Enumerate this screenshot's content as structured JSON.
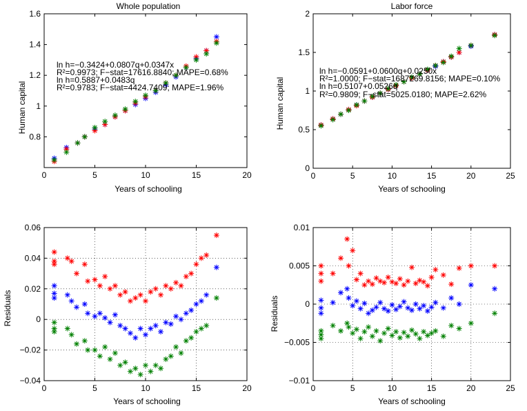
{
  "chart_data": [
    {
      "type": "scatter",
      "title": "Whole population",
      "xlabel": "Years of schooling",
      "ylabel": "Human capital",
      "xlim": [
        0,
        20
      ],
      "ylim": [
        0.6,
        1.6
      ],
      "xticks": [
        "0",
        "5",
        "10",
        "15",
        "20"
      ],
      "yticks": [
        "0.8",
        "1",
        "1.2",
        "1.4",
        "1.6"
      ],
      "grid": false,
      "annotations": [
        "ln h=−0.3424+0.0807q+0.0347x",
        "R²=0.9973; F−stat=17616.8840; MAPE=0.68%",
        "ln h=0.5887+0.0483q",
        "R²=0.9783; F−stat=4424.7409; MAPE=1.96%"
      ],
      "series": [
        {
          "color": "#0000ff",
          "x": [
            1.0,
            2.2,
            3.3,
            4.0,
            5.0,
            6.0,
            7.0,
            8.0,
            9.0,
            10.0,
            11.0,
            12.0,
            13.0,
            14.0,
            15.0,
            16.0,
            17.0
          ],
          "values": [
            0.66,
            0.73,
            0.76,
            0.8,
            0.85,
            0.88,
            0.93,
            0.97,
            1.01,
            1.05,
            1.09,
            1.14,
            1.19,
            1.25,
            1.31,
            1.36,
            1.45
          ]
        },
        {
          "color": "#ff0000",
          "x": [
            1.0,
            2.2,
            3.3,
            4.0,
            5.0,
            6.0,
            7.0,
            8.0,
            9.0,
            10.0,
            11.0,
            12.0,
            13.0,
            14.0,
            15.0,
            16.0,
            17.0
          ],
          "values": [
            0.64,
            0.72,
            0.76,
            0.8,
            0.84,
            0.88,
            0.93,
            0.97,
            1.02,
            1.06,
            1.1,
            1.15,
            1.2,
            1.26,
            1.32,
            1.36,
            1.42
          ]
        },
        {
          "color": "#008000",
          "x": [
            1.0,
            2.2,
            3.3,
            4.0,
            5.0,
            6.0,
            7.0,
            8.0,
            9.0,
            10.0,
            11.0,
            12.0,
            13.0,
            14.0,
            15.0,
            16.0,
            17.0
          ],
          "values": [
            0.65,
            0.7,
            0.76,
            0.8,
            0.86,
            0.9,
            0.94,
            0.98,
            1.03,
            1.07,
            1.1,
            1.15,
            1.2,
            1.25,
            1.3,
            1.34,
            1.41
          ]
        }
      ]
    },
    {
      "type": "scatter",
      "title": "Labor force",
      "xlabel": "Years of schooling",
      "ylabel": "Human capital",
      "xlim": [
        0,
        25
      ],
      "ylim": [
        0,
        2
      ],
      "xticks": [
        "0",
        "5",
        "10",
        "15",
        "20",
        "25"
      ],
      "yticks": [
        "0",
        "0.5",
        "1",
        "1.5",
        "2"
      ],
      "grid": false,
      "annotations": [
        "ln h=−0.0591+0.0600q+0.0250x",
        "R²=1.0000; F−stat=1687269.8156; MAPE=0.10%",
        "ln h=0.5107+0.0526q",
        "R²=0.9809; F−stat=5025.0180; MAPE=2.62%"
      ],
      "series": [
        {
          "color": "#0000ff",
          "x": [
            1.0,
            2.5,
            3.5,
            4.5,
            5.5,
            6.5,
            7.5,
            8.5,
            9.5,
            10.5,
            11.5,
            12.5,
            13.5,
            14.5,
            15.5,
            16.5,
            17.5,
            18.5,
            20.0,
            23.0
          ],
          "values": [
            0.56,
            0.64,
            0.7,
            0.76,
            0.82,
            0.87,
            0.92,
            0.97,
            1.02,
            1.07,
            1.12,
            1.17,
            1.22,
            1.27,
            1.32,
            1.38,
            1.44,
            1.5,
            1.58,
            1.73
          ]
        },
        {
          "color": "#ff0000",
          "x": [
            1.0,
            2.5,
            3.5,
            4.5,
            5.5,
            6.5,
            7.5,
            8.5,
            9.5,
            10.5,
            11.5,
            12.5,
            13.5,
            14.5,
            15.5,
            16.5,
            17.5,
            18.5,
            20.0,
            23.0
          ],
          "values": [
            0.56,
            0.64,
            0.7,
            0.76,
            0.81,
            0.87,
            0.92,
            0.97,
            1.02,
            1.07,
            1.12,
            1.17,
            1.22,
            1.27,
            1.33,
            1.38,
            1.44,
            1.5,
            1.59,
            1.73
          ]
        },
        {
          "color": "#008000",
          "x": [
            1.0,
            2.5,
            3.5,
            4.5,
            5.5,
            6.5,
            7.5,
            8.5,
            9.5,
            10.5,
            11.5,
            12.5,
            13.5,
            14.5,
            15.5,
            16.5,
            17.5,
            18.5,
            20.0,
            23.0
          ],
          "values": [
            0.55,
            0.63,
            0.7,
            0.75,
            0.82,
            0.87,
            0.93,
            0.97,
            1.03,
            1.08,
            1.12,
            1.18,
            1.22,
            1.28,
            1.33,
            1.37,
            1.45,
            1.55,
            1.59,
            1.72
          ]
        }
      ]
    },
    {
      "type": "scatter",
      "title": "",
      "xlabel": "Years of schooling",
      "ylabel": "Residuals",
      "xlim": [
        0,
        20
      ],
      "ylim": [
        -0.04,
        0.06
      ],
      "xticks": [
        "0",
        "5",
        "10",
        "15",
        "20"
      ],
      "yticks": [
        "−0.04",
        "−0.02",
        "0",
        "0.02",
        "0.04",
        "0.06"
      ],
      "grid": true,
      "series": [
        {
          "color": "#ff0000",
          "x": [
            1.0,
            1.0,
            1.0,
            2.3,
            2.7,
            3.2,
            4.0,
            4.3,
            5.0,
            5.5,
            6.0,
            6.5,
            7.0,
            7.5,
            8.0,
            8.5,
            9.0,
            9.5,
            10.0,
            10.5,
            11.0,
            11.5,
            12.0,
            12.5,
            13.0,
            13.5,
            14.0,
            14.5,
            15.0,
            15.5,
            16.0,
            17.0
          ],
          "values": [
            0.044,
            0.038,
            0.036,
            0.04,
            0.038,
            0.03,
            0.036,
            0.025,
            0.026,
            0.022,
            0.028,
            0.02,
            0.022,
            0.016,
            0.018,
            0.012,
            0.014,
            0.016,
            0.012,
            0.018,
            0.02,
            0.016,
            0.022,
            0.02,
            0.024,
            0.022,
            0.028,
            0.03,
            0.036,
            0.04,
            0.042,
            0.055
          ]
        },
        {
          "color": "#0000ff",
          "x": [
            1.0,
            1.0,
            1.0,
            2.3,
            2.7,
            3.2,
            4.0,
            4.3,
            5.0,
            5.5,
            6.0,
            6.5,
            7.0,
            7.5,
            8.0,
            8.5,
            9.0,
            9.5,
            10.0,
            10.5,
            11.0,
            11.5,
            12.0,
            12.5,
            13.0,
            13.5,
            14.0,
            14.5,
            15.0,
            15.5,
            16.0,
            17.0
          ],
          "values": [
            0.022,
            0.017,
            0.014,
            0.016,
            0.012,
            0.008,
            0.01,
            0.004,
            0.002,
            0.004,
            0.001,
            -0.002,
            0.003,
            -0.004,
            -0.006,
            -0.009,
            -0.012,
            -0.006,
            -0.01,
            -0.006,
            -0.004,
            -0.008,
            -0.002,
            -0.003,
            0.002,
            0.0,
            0.004,
            0.006,
            0.01,
            0.012,
            0.016,
            0.034
          ]
        },
        {
          "color": "#008000",
          "x": [
            1.0,
            1.0,
            1.0,
            2.3,
            2.7,
            3.2,
            4.0,
            4.3,
            5.0,
            5.5,
            6.0,
            6.5,
            7.0,
            7.5,
            8.0,
            8.5,
            9.0,
            9.5,
            10.0,
            10.5,
            11.0,
            11.5,
            12.0,
            12.5,
            13.0,
            13.5,
            14.0,
            14.5,
            15.0,
            15.5,
            16.0,
            17.0
          ],
          "values": [
            -0.002,
            -0.006,
            -0.008,
            -0.006,
            -0.01,
            -0.016,
            -0.014,
            -0.02,
            -0.02,
            -0.024,
            -0.018,
            -0.026,
            -0.022,
            -0.03,
            -0.028,
            -0.034,
            -0.032,
            -0.036,
            -0.03,
            -0.034,
            -0.03,
            -0.032,
            -0.026,
            -0.024,
            -0.018,
            -0.022,
            -0.014,
            -0.012,
            -0.008,
            -0.006,
            -0.004,
            0.014
          ]
        }
      ]
    },
    {
      "type": "scatter",
      "title": "",
      "xlabel": "Years of schooling",
      "ylabel": "Residuals",
      "xlim": [
        0,
        25
      ],
      "ylim": [
        -0.01,
        0.01
      ],
      "xticks": [
        "0",
        "5",
        "10",
        "15",
        "20",
        "25"
      ],
      "yticks": [
        "−0.01",
        "−0.005",
        "0",
        "0.005",
        "0.01"
      ],
      "grid": true,
      "series": [
        {
          "color": "#ff0000",
          "x": [
            1.0,
            1.0,
            1.0,
            2.5,
            3.5,
            4.3,
            4.5,
            5.0,
            5.5,
            6.0,
            6.5,
            7.0,
            7.5,
            8.0,
            8.5,
            9.0,
            9.5,
            10.0,
            10.5,
            11.0,
            11.5,
            12.0,
            12.5,
            13.0,
            13.5,
            14.0,
            14.5,
            15.0,
            15.5,
            16.5,
            17.5,
            18.5,
            20.0,
            23.0
          ],
          "values": [
            0.005,
            0.004,
            0.003,
            0.004,
            0.006,
            0.0085,
            0.005,
            0.007,
            0.0032,
            0.004,
            0.0025,
            0.003,
            0.0026,
            0.0034,
            0.003,
            0.0028,
            0.0035,
            0.0029,
            0.0027,
            0.0033,
            0.0025,
            0.003,
            0.0048,
            0.0027,
            0.0031,
            0.0029,
            0.0024,
            0.0035,
            0.0045,
            0.0038,
            0.0026,
            0.0047,
            0.005,
            0.005
          ]
        },
        {
          "color": "#0000ff",
          "x": [
            1.0,
            1.0,
            1.0,
            2.5,
            3.5,
            4.3,
            4.5,
            5.0,
            5.5,
            6.0,
            6.5,
            7.0,
            7.5,
            8.0,
            8.5,
            9.0,
            9.5,
            10.0,
            10.5,
            11.0,
            11.5,
            12.0,
            12.5,
            13.0,
            13.5,
            14.0,
            14.5,
            15.0,
            15.5,
            16.5,
            17.5,
            18.5,
            20.0,
            23.0
          ],
          "values": [
            0.0005,
            -0.0005,
            -0.0012,
            0.0002,
            0.0015,
            0.002,
            0.0008,
            -0.0002,
            0.0004,
            -0.0006,
            0.0001,
            -0.0012,
            -0.0008,
            -0.0004,
            0.0002,
            -0.0006,
            -0.0009,
            -0.0001,
            -0.0007,
            -0.0003,
            0.0003,
            -0.0005,
            -0.0008,
            0.0,
            -0.0006,
            -0.0002,
            -0.0009,
            -0.0004,
            0.0002,
            -0.0005,
            0.0008,
            0.0,
            0.0025,
            0.002
          ]
        },
        {
          "color": "#008000",
          "x": [
            1.0,
            1.0,
            1.0,
            2.5,
            3.5,
            4.3,
            4.5,
            5.0,
            5.5,
            6.0,
            6.5,
            7.0,
            7.5,
            8.0,
            8.5,
            9.0,
            9.5,
            10.0,
            10.5,
            11.0,
            11.5,
            12.0,
            12.5,
            13.0,
            13.5,
            14.0,
            14.5,
            15.0,
            15.5,
            16.5,
            17.5,
            18.5,
            20.0,
            23.0
          ],
          "values": [
            -0.0035,
            -0.004,
            -0.0045,
            -0.0028,
            -0.0035,
            -0.0025,
            -0.003,
            -0.0038,
            -0.0033,
            -0.0045,
            -0.0036,
            -0.003,
            -0.0042,
            -0.0035,
            -0.0048,
            -0.0038,
            -0.0032,
            -0.0041,
            -0.0036,
            -0.0044,
            -0.0037,
            -0.0042,
            -0.0034,
            -0.0039,
            -0.0045,
            -0.0036,
            -0.0041,
            -0.0038,
            -0.0035,
            -0.0042,
            -0.0028,
            -0.0032,
            -0.0025,
            -0.0012
          ]
        }
      ]
    }
  ]
}
